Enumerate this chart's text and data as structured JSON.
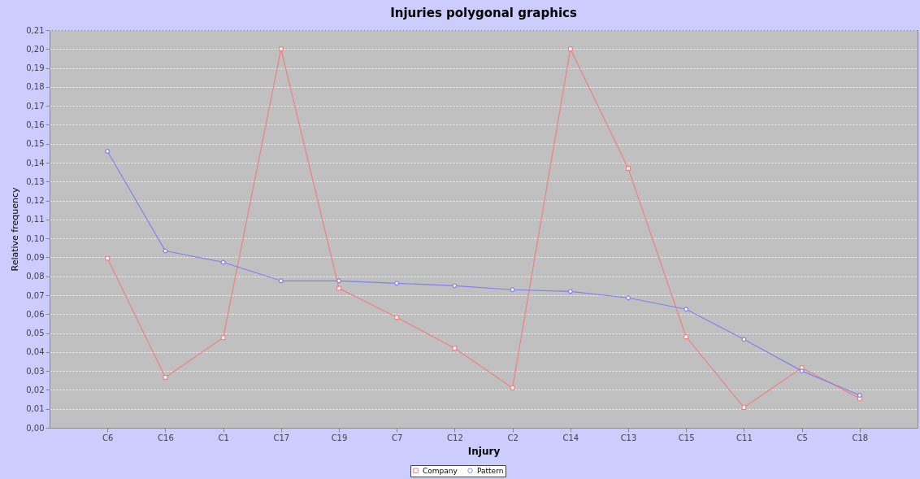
{
  "chart_data": {
    "type": "line",
    "title": "Injuries polygonal graphics",
    "xlabel": "Injury",
    "ylabel": "Relative frequency",
    "categories": [
      "C6",
      "C16",
      "C1",
      "C17",
      "C19",
      "C7",
      "C12",
      "C2",
      "C14",
      "C13",
      "C15",
      "C11",
      "C5",
      "C18"
    ],
    "series": [
      {
        "name": "Company",
        "color": "#f08080",
        "marker": "square",
        "values": [
          0.0895,
          0.0266,
          0.0476,
          0.2,
          0.0737,
          0.0583,
          0.042,
          0.021,
          0.2,
          0.137,
          0.048,
          0.0107,
          0.0317,
          0.0155
        ]
      },
      {
        "name": "Pattern",
        "color": "#8080f0",
        "marker": "circle",
        "values": [
          0.146,
          0.0934,
          0.0874,
          0.0776,
          0.0776,
          0.0763,
          0.075,
          0.0729,
          0.072,
          0.0686,
          0.0626,
          0.0467,
          0.03,
          0.0172
        ]
      }
    ],
    "ylim": [
      0,
      0.21
    ],
    "yticks": [
      {
        "value": 0,
        "label": "0,00"
      },
      {
        "value": 0.01,
        "label": "0,01"
      },
      {
        "value": 0.02,
        "label": "0,02"
      },
      {
        "value": 0.03,
        "label": "0,03"
      },
      {
        "value": 0.04,
        "label": "0,04"
      },
      {
        "value": 0.05,
        "label": "0,05"
      },
      {
        "value": 0.06,
        "label": "0,06"
      },
      {
        "value": 0.07,
        "label": "0,07"
      },
      {
        "value": 0.08,
        "label": "0,08"
      },
      {
        "value": 0.09,
        "label": "0,09"
      },
      {
        "value": 0.1,
        "label": "0,10"
      },
      {
        "value": 0.11,
        "label": "0,11"
      },
      {
        "value": 0.12,
        "label": "0,12"
      },
      {
        "value": 0.13,
        "label": "0,13"
      },
      {
        "value": 0.14,
        "label": "0,14"
      },
      {
        "value": 0.15,
        "label": "0,15"
      },
      {
        "value": 0.16,
        "label": "0,16"
      },
      {
        "value": 0.17,
        "label": "0,17"
      },
      {
        "value": 0.18,
        "label": "0,18"
      },
      {
        "value": 0.19,
        "label": "0,19"
      },
      {
        "value": 0.2,
        "label": "0,20"
      },
      {
        "value": 0.21,
        "label": "0,21"
      }
    ],
    "grid": "y",
    "legend": "bottom",
    "line_style": "solid"
  }
}
